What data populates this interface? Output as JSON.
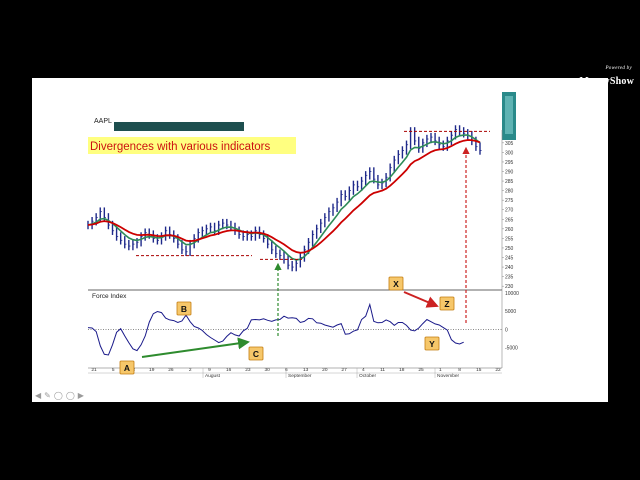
{
  "watermark": {
    "tagline": "Powered by",
    "brand": "MoneyShow"
  },
  "slide_nav": {
    "icons": [
      "prev-arrow-icon",
      "pen-icon",
      "pointer-icon",
      "menu-icon",
      "next-arrow-icon"
    ]
  },
  "chart_data": [
    {
      "type": "candlestick",
      "ticker": "AAPL",
      "title": "Divergences with various indicators",
      "y_ticks": [
        230,
        235,
        240,
        245,
        250,
        255,
        260,
        265,
        270,
        275,
        280,
        285,
        290,
        295,
        300,
        305
      ],
      "ylim": [
        228,
        318
      ],
      "moving_averages": [
        {
          "color": "#2e8b57",
          "role": "fast average"
        },
        {
          "color": "#cc0000",
          "role": "slow average"
        }
      ],
      "close_series": [
        262,
        264,
        266,
        269,
        266,
        262,
        259,
        256,
        254,
        252,
        251,
        252,
        253,
        256,
        258,
        257,
        255,
        254,
        256,
        259,
        257,
        255,
        252,
        249,
        248,
        252,
        255,
        258,
        259,
        260,
        261,
        259,
        262,
        263,
        262,
        261,
        259,
        257,
        256,
        257,
        256,
        259,
        257,
        255,
        252,
        249,
        247,
        246,
        244,
        241,
        240,
        242,
        245,
        249,
        253,
        257,
        260,
        263,
        266,
        269,
        271,
        274,
        278,
        277,
        280,
        283,
        282,
        285,
        288,
        290,
        286,
        283,
        284,
        287,
        292,
        296,
        299,
        301,
        304,
        311,
        306,
        302,
        305,
        307,
        308,
        306,
        304,
        303,
        306,
        309,
        312,
        311,
        310,
        309,
        306,
        303,
        301
      ],
      "support_lines": [
        {
          "level": 246,
          "color": "#aa0000"
        },
        {
          "level": 244,
          "color": "#aa0000"
        },
        {
          "level": 311,
          "color": "#aa0000"
        }
      ],
      "colors": {
        "bars": "#1f2a8a",
        "annotation_green": "#2e8b2e",
        "annotation_red": "#cc2222"
      }
    },
    {
      "type": "line",
      "name": "Force Index",
      "y_ticks": [
        10000,
        5000,
        0,
        -5000
      ],
      "ylim": [
        -10000,
        10500
      ],
      "x_tick_labels": [
        "21",
        "5",
        "12",
        "19",
        "26",
        "2",
        "9",
        "16",
        "23",
        "30",
        "6",
        "13",
        "20",
        "27",
        "4",
        "11",
        "18",
        "25",
        "1",
        "8",
        "15",
        "22"
      ],
      "month_labels": [
        "August",
        "September",
        "October",
        "November"
      ],
      "values": [
        500,
        400,
        -600,
        -4500,
        -6800,
        -7000,
        -4200,
        -800,
        200,
        -1800,
        -3600,
        -5300,
        -5800,
        -4200,
        -1800,
        2000,
        4300,
        4900,
        4600,
        3100,
        2600,
        2400,
        1900,
        2300,
        3900,
        2100,
        800,
        400,
        -300,
        -1400,
        -2200,
        -2900,
        -3600,
        -3200,
        -1900,
        -900,
        -1500,
        -1800,
        -400,
        300,
        2600,
        2700,
        2600,
        2900,
        2500,
        2200,
        2600,
        2700,
        3600,
        3100,
        3200,
        3000,
        1900,
        2200,
        3000,
        2900,
        1800,
        1700,
        1200,
        900,
        600,
        1200,
        1600,
        -1300,
        -1200,
        -500,
        -100,
        2700,
        3600,
        6800,
        2200,
        1800,
        1900,
        2600,
        2100,
        1100,
        1900,
        1900,
        1100,
        -200,
        -400,
        400,
        1600,
        2700,
        2100,
        1500,
        1200,
        500,
        -200,
        -2800,
        -3700,
        -4000,
        -3500
      ],
      "annotations": [
        "A",
        "B",
        "C",
        "X",
        "Y",
        "Z"
      ]
    }
  ]
}
